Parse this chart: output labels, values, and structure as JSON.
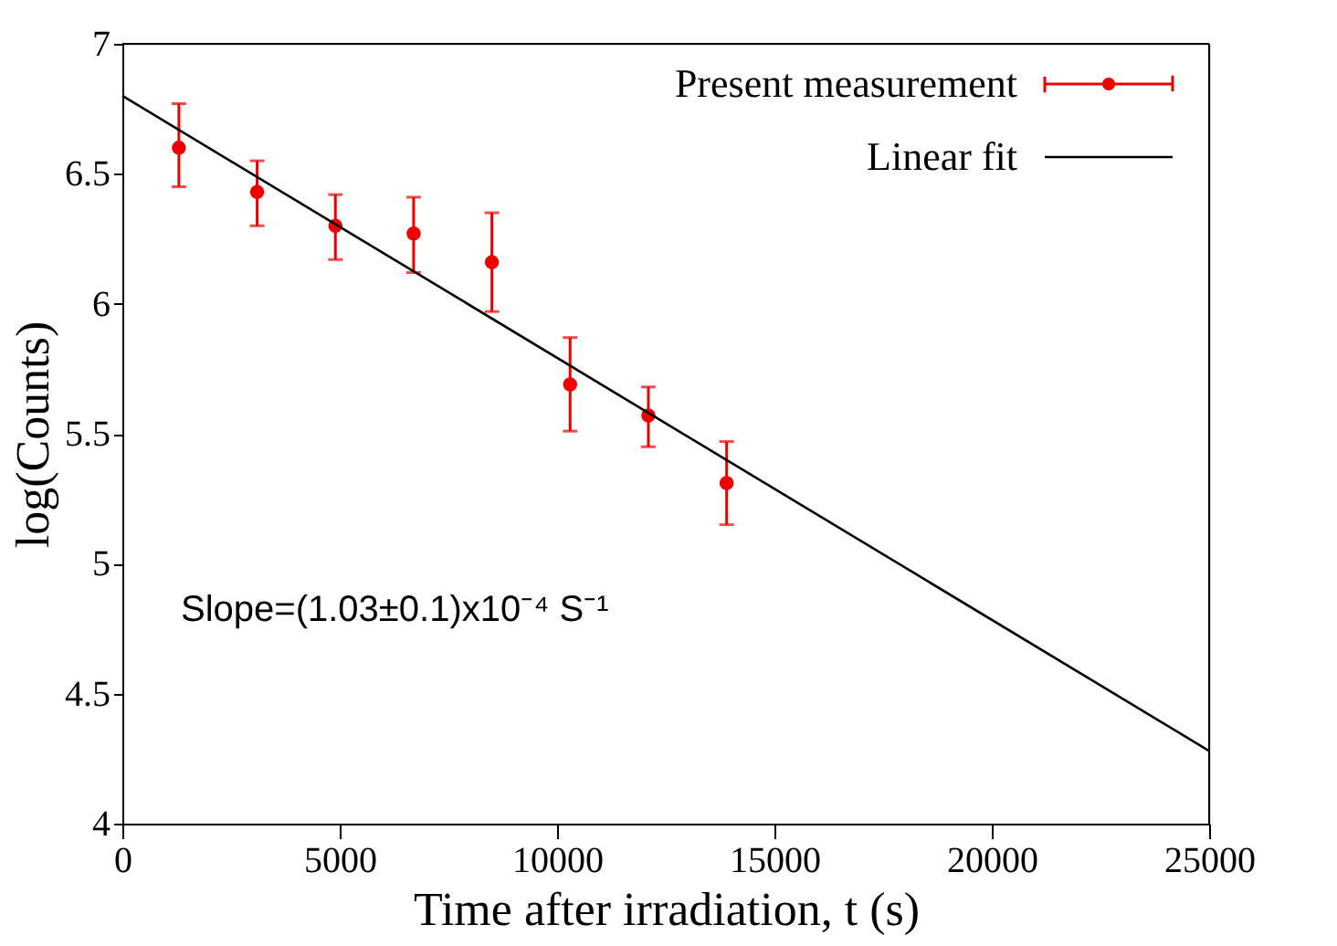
{
  "chart_data": {
    "type": "scatter",
    "xlabel": "Time after irradiation, t (s)",
    "ylabel": "log(Counts)",
    "xlim": [
      0,
      25000
    ],
    "xticks": [
      0,
      5000,
      10000,
      15000,
      20000,
      25000
    ],
    "ylim": [
      4,
      7
    ],
    "yticks": [
      4,
      4.5,
      5,
      5.5,
      6,
      6.5,
      7
    ],
    "grid": false,
    "legend": "top right",
    "annotations": [
      "Slope=(1.03±0.1)x10⁻⁴ S⁻¹"
    ],
    "series": [
      {
        "name": "Present measurement",
        "marker": "circle",
        "color": "#ee0000",
        "x": [
          1300,
          3100,
          4900,
          6700,
          8500,
          10300,
          12100,
          13900
        ],
        "values": [
          6.6,
          6.43,
          6.3,
          6.27,
          6.16,
          5.69,
          5.57,
          5.31
        ],
        "errors": [
          [
            6.45,
            6.77
          ],
          [
            6.3,
            6.55
          ],
          [
            6.17,
            6.42
          ],
          [
            6.12,
            6.41
          ],
          [
            5.97,
            6.35
          ],
          [
            5.51,
            5.87
          ],
          [
            5.45,
            5.68
          ],
          [
            5.15,
            5.47
          ]
        ]
      },
      {
        "name": "Linear fit",
        "type": "line",
        "color": "#000000",
        "x": [
          0,
          25000
        ],
        "values": [
          6.8,
          4.28
        ],
        "line_style": "solid"
      }
    ]
  }
}
